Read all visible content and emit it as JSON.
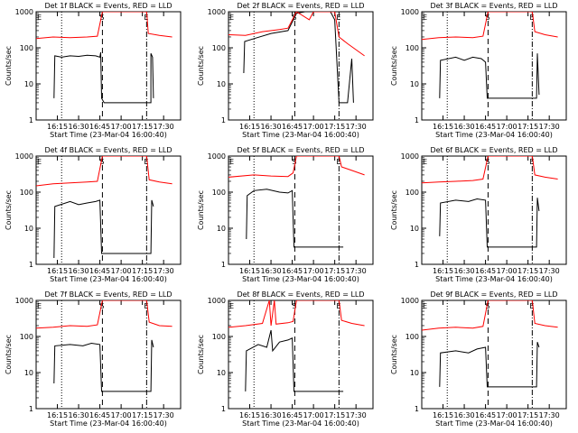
{
  "chart_data": [
    {
      "type": "line",
      "title": "Det 1f BLACK = Events, RED = LLD",
      "xlabel": "Start Time (23-Mar-04 16:00:40)",
      "ylabel": "Counts/sec",
      "yscale": "log",
      "ylim": [
        1,
        1000
      ],
      "x_ticks": [
        "16:15",
        "16:30",
        "16:45",
        "17:00",
        "17:15",
        "17:30"
      ],
      "y_ticks": [
        "1",
        "10",
        "100",
        "1000"
      ],
      "markers": [
        "E",
        "S",
        "E"
      ],
      "series": [
        {
          "color": "#000000",
          "values": [
            [
              16.21,
              4
            ],
            [
              16.22,
              60
            ],
            [
              16.3,
              55
            ],
            [
              16.4,
              60
            ],
            [
              16.5,
              58
            ],
            [
              16.6,
              62
            ],
            [
              16.7,
              60
            ],
            [
              16.75,
              55
            ],
            [
              16.76,
              75
            ],
            [
              16.77,
              4
            ],
            [
              16.8,
              3
            ],
            [
              17.35,
              3
            ],
            [
              17.35,
              70
            ],
            [
              17.37,
              55
            ],
            [
              17.38,
              4
            ]
          ]
        },
        {
          "color": "#ff0000",
          "values": [
            [
              16.0,
              180
            ],
            [
              16.2,
              200
            ],
            [
              16.4,
              190
            ],
            [
              16.6,
              200
            ],
            [
              16.72,
              210
            ],
            [
              16.78,
              1000
            ],
            [
              17.3,
              1000
            ],
            [
              17.32,
              250
            ],
            [
              17.45,
              220
            ],
            [
              17.6,
              200
            ]
          ]
        }
      ]
    },
    {
      "type": "line",
      "title": "Det 2f BLACK = Events, RED = LLD",
      "xlabel": "Start Time (23-Mar-04 16:00:40)",
      "ylabel": "Counts/sec",
      "yscale": "log",
      "ylim": [
        1,
        1000
      ],
      "x_ticks": [
        "16:15",
        "16:30",
        "16:45",
        "17:00",
        "17:15",
        "17:30"
      ],
      "y_ticks": [
        "1",
        "10",
        "100",
        "1000"
      ],
      "markers": [
        "E",
        "S",
        "E"
      ],
      "series": [
        {
          "color": "#000000",
          "values": [
            [
              16.18,
              20
            ],
            [
              16.19,
              150
            ],
            [
              16.3,
              180
            ],
            [
              16.5,
              250
            ],
            [
              16.7,
              300
            ],
            [
              16.8,
              900
            ],
            [
              16.9,
              1000
            ],
            [
              17.2,
              1000
            ],
            [
              17.25,
              600
            ],
            [
              17.3,
              3
            ],
            [
              17.4,
              3
            ],
            [
              17.45,
              50
            ],
            [
              17.47,
              3
            ]
          ]
        },
        {
          "color": "#ff0000",
          "values": [
            [
              16.0,
              230
            ],
            [
              16.2,
              220
            ],
            [
              16.4,
              280
            ],
            [
              16.6,
              320
            ],
            [
              16.7,
              350
            ],
            [
              16.8,
              1000
            ],
            [
              16.95,
              600
            ],
            [
              17.0,
              1000
            ],
            [
              17.25,
              1000
            ],
            [
              17.3,
              200
            ],
            [
              17.4,
              130
            ],
            [
              17.6,
              60
            ]
          ]
        }
      ]
    },
    {
      "type": "line",
      "title": "Det 3f BLACK = Events, RED = LLD",
      "xlabel": "Start Time (23-Mar-04 16:00:40)",
      "ylabel": "Counts/sec",
      "yscale": "log",
      "ylim": [
        1,
        1000
      ],
      "x_ticks": [
        "16:15",
        "16:30",
        "16:45",
        "17:00",
        "17:15",
        "17:30"
      ],
      "y_ticks": [
        "1",
        "10",
        "100",
        "1000"
      ],
      "markers": [
        "E",
        "S",
        "E"
      ],
      "series": [
        {
          "color": "#000000",
          "values": [
            [
              16.21,
              4
            ],
            [
              16.22,
              45
            ],
            [
              16.4,
              55
            ],
            [
              16.5,
              45
            ],
            [
              16.6,
              55
            ],
            [
              16.7,
              50
            ],
            [
              16.75,
              40
            ],
            [
              16.77,
              4
            ],
            [
              17.35,
              4
            ],
            [
              17.36,
              70
            ],
            [
              17.38,
              5
            ]
          ]
        },
        {
          "color": "#ff0000",
          "values": [
            [
              16.0,
              170
            ],
            [
              16.2,
              190
            ],
            [
              16.4,
              200
            ],
            [
              16.6,
              190
            ],
            [
              16.72,
              210
            ],
            [
              16.78,
              1000
            ],
            [
              17.3,
              1000
            ],
            [
              17.33,
              280
            ],
            [
              17.45,
              230
            ],
            [
              17.6,
              200
            ]
          ]
        }
      ]
    },
    {
      "type": "line",
      "title": "Det 4f BLACK = Events, RED = LLD",
      "xlabel": "Start Time (23-Mar-04 16:00:40)",
      "ylabel": "Counts/sec",
      "yscale": "log",
      "ylim": [
        1,
        1000
      ],
      "x_ticks": [
        "16:15",
        "16:30",
        "16:45",
        "17:00",
        "17:15",
        "17:30"
      ],
      "y_ticks": [
        "1",
        "10",
        "100",
        "1000"
      ],
      "markers": [
        "E",
        "S",
        "E"
      ],
      "series": [
        {
          "color": "#000000",
          "values": [
            [
              16.21,
              1.5
            ],
            [
              16.22,
              40
            ],
            [
              16.4,
              55
            ],
            [
              16.5,
              45
            ],
            [
              16.6,
              50
            ],
            [
              16.7,
              55
            ],
            [
              16.75,
              60
            ],
            [
              16.77,
              2
            ],
            [
              17.35,
              2
            ],
            [
              17.36,
              60
            ],
            [
              17.38,
              40
            ]
          ]
        },
        {
          "color": "#ff0000",
          "values": [
            [
              16.0,
              150
            ],
            [
              16.2,
              170
            ],
            [
              16.4,
              180
            ],
            [
              16.6,
              190
            ],
            [
              16.72,
              200
            ],
            [
              16.78,
              1000
            ],
            [
              17.3,
              1000
            ],
            [
              17.33,
              220
            ],
            [
              17.45,
              190
            ],
            [
              17.6,
              170
            ]
          ]
        }
      ]
    },
    {
      "type": "line",
      "title": "Det 5f BLACK = Events, RED = LLD",
      "xlabel": "Start Time (23-Mar-04 16:00:40)",
      "ylabel": "Counts/sec",
      "yscale": "log",
      "ylim": [
        1,
        1000
      ],
      "x_ticks": [
        "16:15",
        "16:30",
        "16:45",
        "17:00",
        "17:15",
        "17:30"
      ],
      "y_ticks": [
        "1",
        "10",
        "100",
        "1000"
      ],
      "markers": [
        "E",
        "S",
        "E"
      ],
      "series": [
        {
          "color": "#000000",
          "values": [
            [
              16.21,
              5
            ],
            [
              16.22,
              80
            ],
            [
              16.3,
              110
            ],
            [
              16.45,
              120
            ],
            [
              16.6,
              100
            ],
            [
              16.7,
              95
            ],
            [
              16.75,
              110
            ],
            [
              16.77,
              3
            ],
            [
              17.35,
              3
            ]
          ]
        },
        {
          "color": "#ff0000",
          "values": [
            [
              16.0,
              260
            ],
            [
              16.3,
              300
            ],
            [
              16.5,
              280
            ],
            [
              16.7,
              270
            ],
            [
              16.76,
              340
            ],
            [
              16.8,
              1000
            ],
            [
              17.3,
              1000
            ],
            [
              17.33,
              500
            ],
            [
              17.45,
              400
            ],
            [
              17.6,
              300
            ]
          ]
        }
      ]
    },
    {
      "type": "line",
      "title": "Det 6f BLACK = Events, RED = LLD",
      "xlabel": "Start Time (23-Mar-04 16:00:40)",
      "ylabel": "Counts/sec",
      "yscale": "log",
      "ylim": [
        1,
        1000
      ],
      "x_ticks": [
        "16:15",
        "16:30",
        "16:45",
        "17:00",
        "17:15",
        "17:30"
      ],
      "y_ticks": [
        "1",
        "10",
        "100",
        "1000"
      ],
      "markers": [
        "E",
        "S",
        "E"
      ],
      "series": [
        {
          "color": "#000000",
          "values": [
            [
              16.21,
              6
            ],
            [
              16.22,
              50
            ],
            [
              16.4,
              60
            ],
            [
              16.55,
              55
            ],
            [
              16.65,
              65
            ],
            [
              16.75,
              60
            ],
            [
              16.77,
              3
            ],
            [
              17.35,
              3
            ],
            [
              17.36,
              70
            ],
            [
              17.38,
              30
            ]
          ]
        },
        {
          "color": "#ff0000",
          "values": [
            [
              16.0,
              180
            ],
            [
              16.2,
              190
            ],
            [
              16.4,
              200
            ],
            [
              16.6,
              210
            ],
            [
              16.72,
              230
            ],
            [
              16.78,
              1000
            ],
            [
              17.3,
              1000
            ],
            [
              17.33,
              300
            ],
            [
              17.45,
              260
            ],
            [
              17.6,
              230
            ]
          ]
        }
      ]
    },
    {
      "type": "line",
      "title": "Det 7f BLACK = Events, RED = LLD",
      "xlabel": "Start Time (23-Mar-04 16:00:40)",
      "ylabel": "Counts/sec",
      "yscale": "log",
      "ylim": [
        1,
        1000
      ],
      "x_ticks": [
        "16:15",
        "16:30",
        "16:45",
        "17:00",
        "17:15",
        "17:30"
      ],
      "y_ticks": [
        "1",
        "10",
        "100",
        "1000"
      ],
      "markers": [
        "E",
        "S",
        "E"
      ],
      "series": [
        {
          "color": "#000000",
          "values": [
            [
              16.21,
              5
            ],
            [
              16.22,
              55
            ],
            [
              16.4,
              60
            ],
            [
              16.55,
              55
            ],
            [
              16.65,
              65
            ],
            [
              16.75,
              60
            ],
            [
              16.77,
              3
            ],
            [
              17.35,
              3
            ],
            [
              17.36,
              80
            ],
            [
              17.38,
              50
            ]
          ]
        },
        {
          "color": "#ff0000",
          "values": [
            [
              16.0,
              170
            ],
            [
              16.2,
              180
            ],
            [
              16.4,
              200
            ],
            [
              16.6,
              190
            ],
            [
              16.72,
              210
            ],
            [
              16.78,
              1000
            ],
            [
              17.3,
              1000
            ],
            [
              17.33,
              250
            ],
            [
              17.45,
              200
            ],
            [
              17.6,
              190
            ]
          ]
        }
      ]
    },
    {
      "type": "line",
      "title": "Det 8f BLACK = Events, RED = LLD",
      "xlabel": "Start Time (23-Mar-04 16:00:40)",
      "ylabel": "Counts/sec",
      "yscale": "log",
      "ylim": [
        1,
        1000
      ],
      "x_ticks": [
        "16:15",
        "16:30",
        "16:45",
        "17:00",
        "17:15",
        "17:30"
      ],
      "y_ticks": [
        "1",
        "10",
        "100",
        "1000"
      ],
      "markers": [
        "E",
        "S",
        "E"
      ],
      "series": [
        {
          "color": "#000000",
          "values": [
            [
              16.2,
              3
            ],
            [
              16.21,
              40
            ],
            [
              16.35,
              60
            ],
            [
              16.45,
              50
            ],
            [
              16.5,
              150
            ],
            [
              16.52,
              40
            ],
            [
              16.6,
              70
            ],
            [
              16.7,
              80
            ],
            [
              16.75,
              90
            ],
            [
              16.77,
              3
            ],
            [
              17.35,
              3
            ]
          ]
        },
        {
          "color": "#ff0000",
          "values": [
            [
              16.0,
              180
            ],
            [
              16.2,
              200
            ],
            [
              16.4,
              230
            ],
            [
              16.48,
              1000
            ],
            [
              16.5,
              200
            ],
            [
              16.54,
              1000
            ],
            [
              16.56,
              220
            ],
            [
              16.7,
              240
            ],
            [
              16.76,
              260
            ],
            [
              16.8,
              1000
            ],
            [
              17.3,
              1000
            ],
            [
              17.33,
              280
            ],
            [
              17.45,
              230
            ],
            [
              17.6,
              200
            ]
          ]
        }
      ]
    },
    {
      "type": "line",
      "title": "Det 9f BLACK = Events, RED = LLD",
      "xlabel": "Start Time (23-Mar-04 16:00:40)",
      "ylabel": "Counts/sec",
      "yscale": "log",
      "ylim": [
        1,
        1000
      ],
      "x_ticks": [
        "16:15",
        "16:30",
        "16:45",
        "17:00",
        "17:15",
        "17:30"
      ],
      "y_ticks": [
        "1",
        "10",
        "100",
        "1000"
      ],
      "markers": [
        "E",
        "S",
        "E"
      ],
      "series": [
        {
          "color": "#000000",
          "values": [
            [
              16.21,
              4
            ],
            [
              16.22,
              35
            ],
            [
              16.4,
              40
            ],
            [
              16.55,
              35
            ],
            [
              16.65,
              45
            ],
            [
              16.75,
              50
            ],
            [
              16.77,
              4
            ],
            [
              17.35,
              4
            ],
            [
              17.36,
              70
            ],
            [
              17.38,
              50
            ]
          ]
        },
        {
          "color": "#ff0000",
          "values": [
            [
              16.0,
              150
            ],
            [
              16.2,
              170
            ],
            [
              16.4,
              180
            ],
            [
              16.6,
              170
            ],
            [
              16.72,
              190
            ],
            [
              16.78,
              1000
            ],
            [
              17.3,
              1000
            ],
            [
              17.33,
              230
            ],
            [
              17.45,
              200
            ],
            [
              17.6,
              180
            ]
          ]
        }
      ]
    }
  ]
}
